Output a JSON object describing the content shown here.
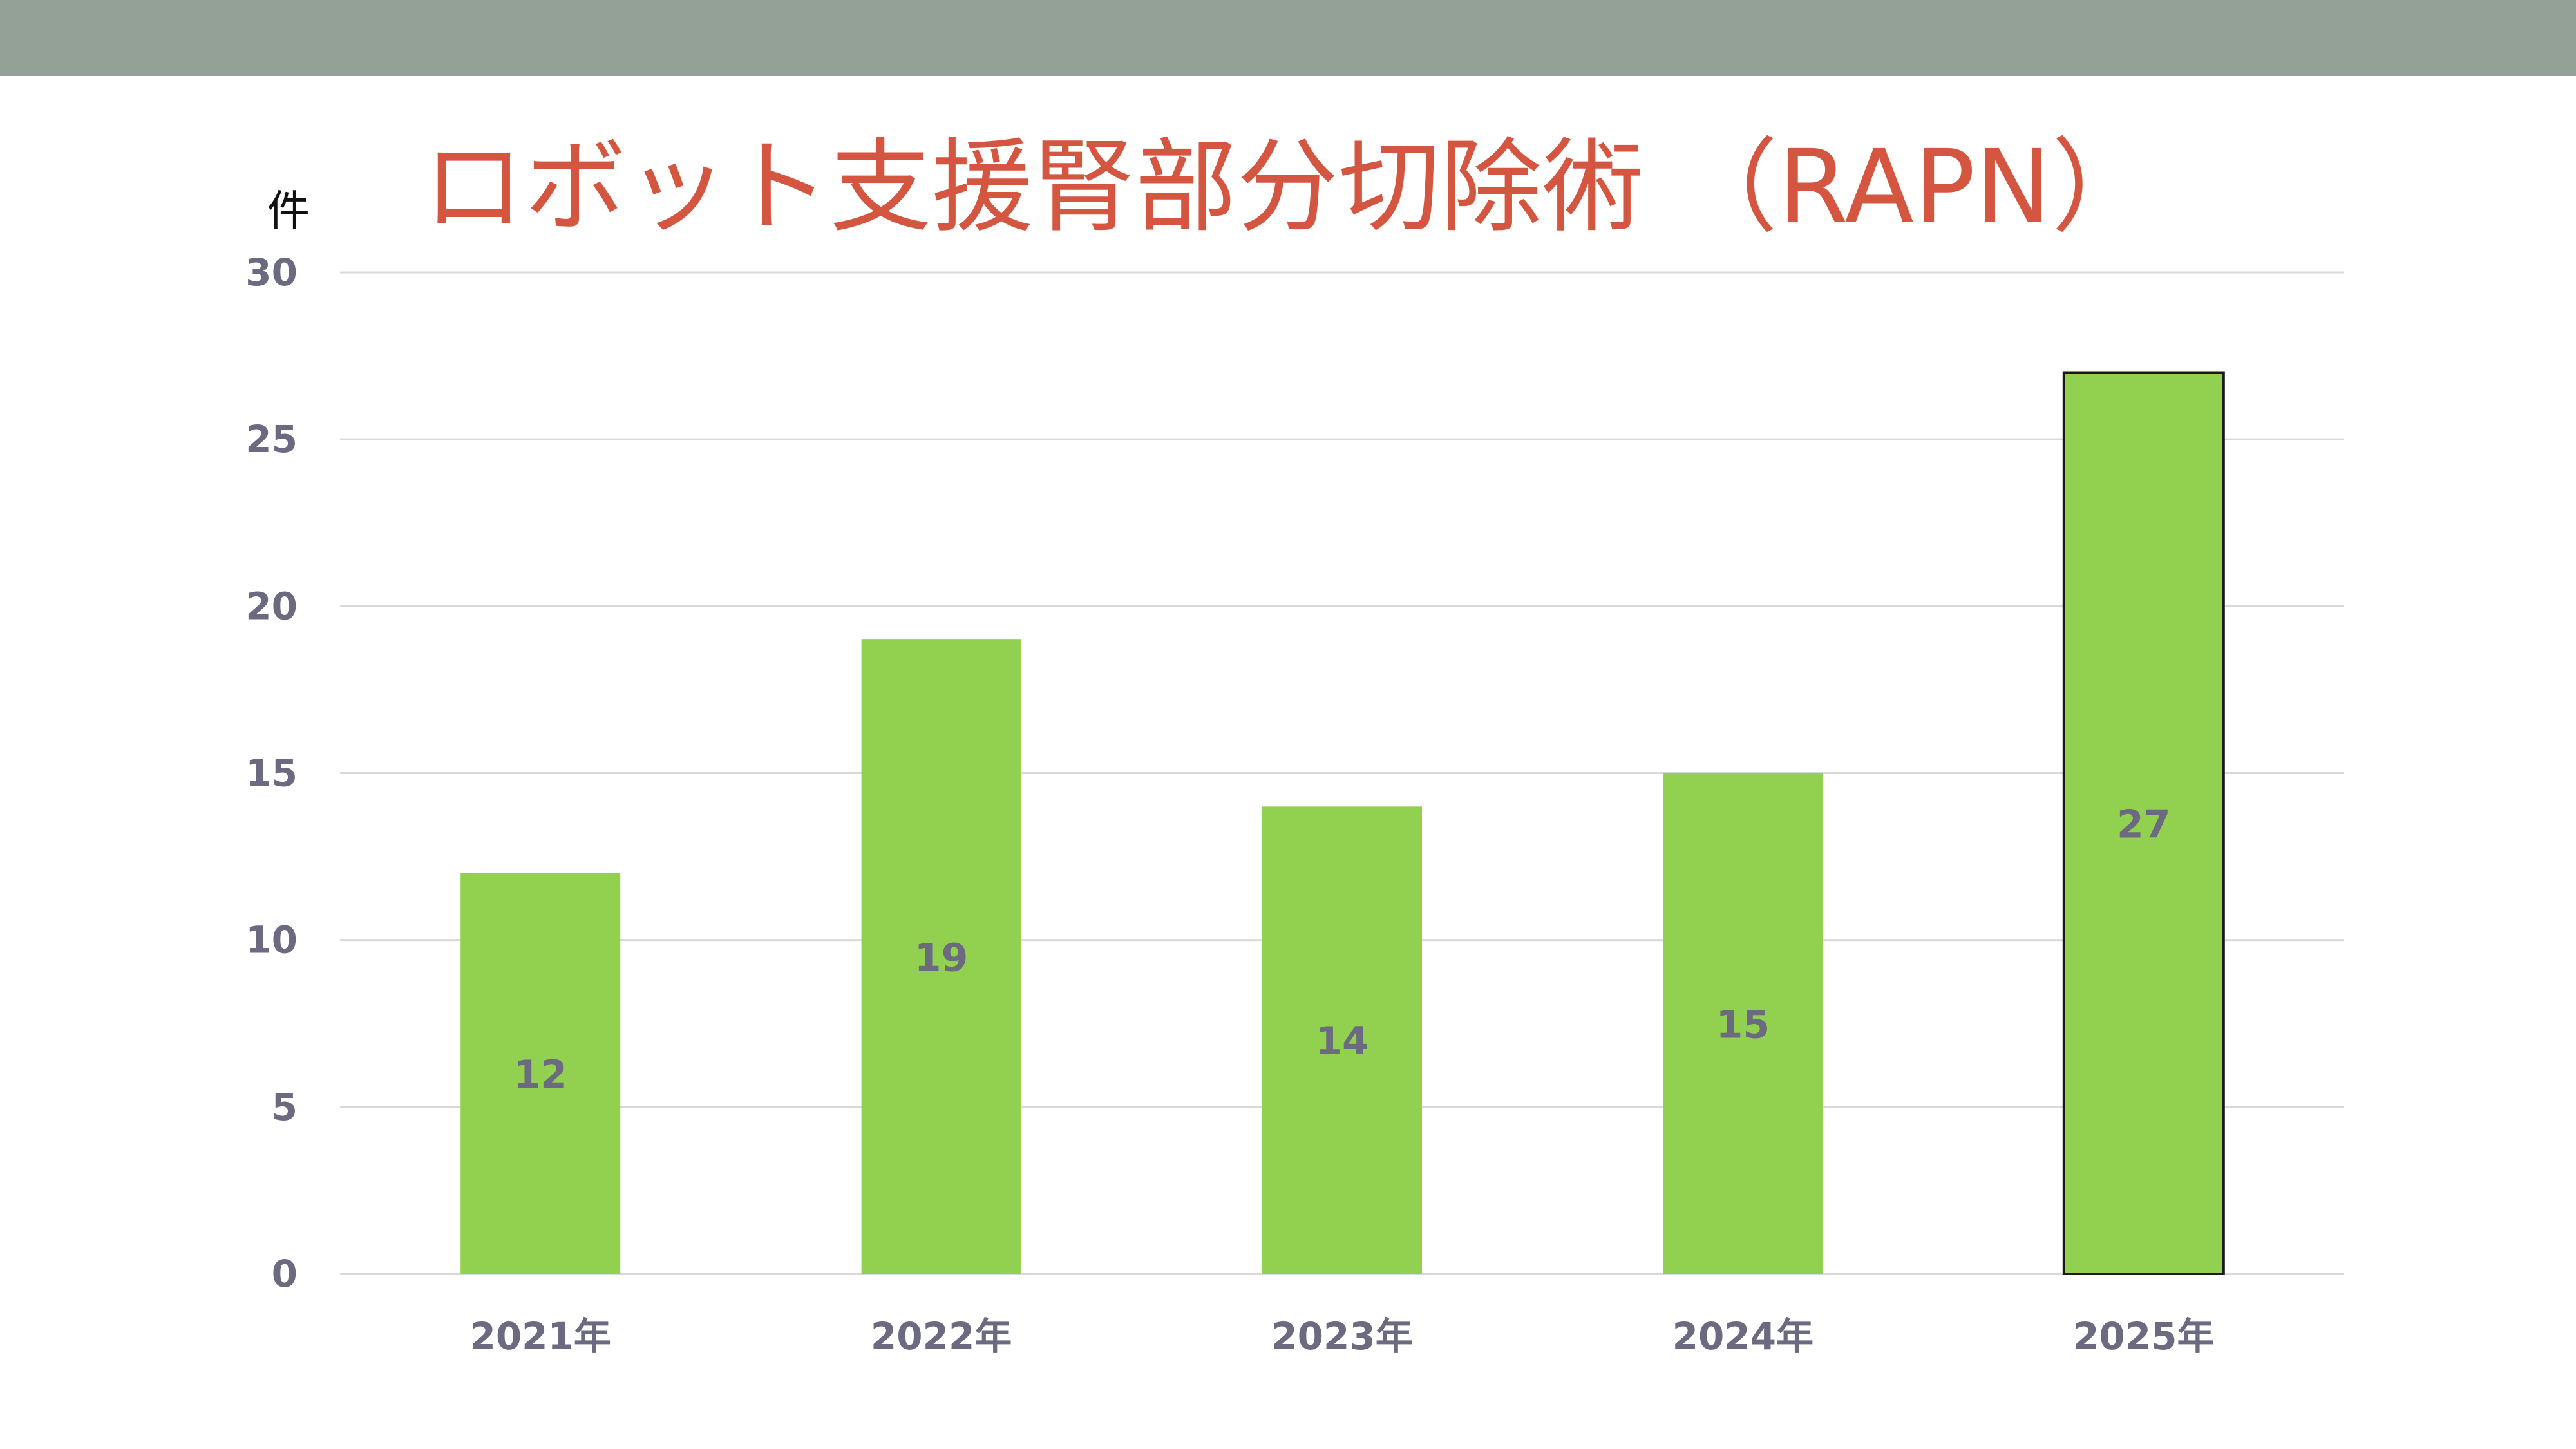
{
  "slide": {
    "band_color": "#93a196",
    "title_color": "#d55640"
  },
  "chart_data": {
    "type": "bar",
    "title": "ロボット支援腎部分切除術 （RAPN）",
    "xlabel": "",
    "ylabel": "件",
    "categories": [
      "2021年",
      "2022年",
      "2023年",
      "2024年",
      "2025年"
    ],
    "values": [
      12,
      19,
      14,
      15,
      27
    ],
    "data_labels": [
      "12",
      "19",
      "14",
      "15",
      "27"
    ],
    "ylim": [
      0,
      30
    ],
    "yticks": [
      0,
      5,
      10,
      15,
      20,
      25,
      30
    ],
    "ytick_labels": [
      "0",
      "5",
      "10",
      "15",
      "20",
      "25",
      "30"
    ],
    "grid": true,
    "legend": "none",
    "colors": {
      "bar": "#92d050",
      "grid": "#d9d9d9",
      "tick_text": "#6b6a80",
      "unit_text": "#111111",
      "highlight_outline": "#1a1a1a"
    },
    "highlighted_category": "2025年"
  }
}
